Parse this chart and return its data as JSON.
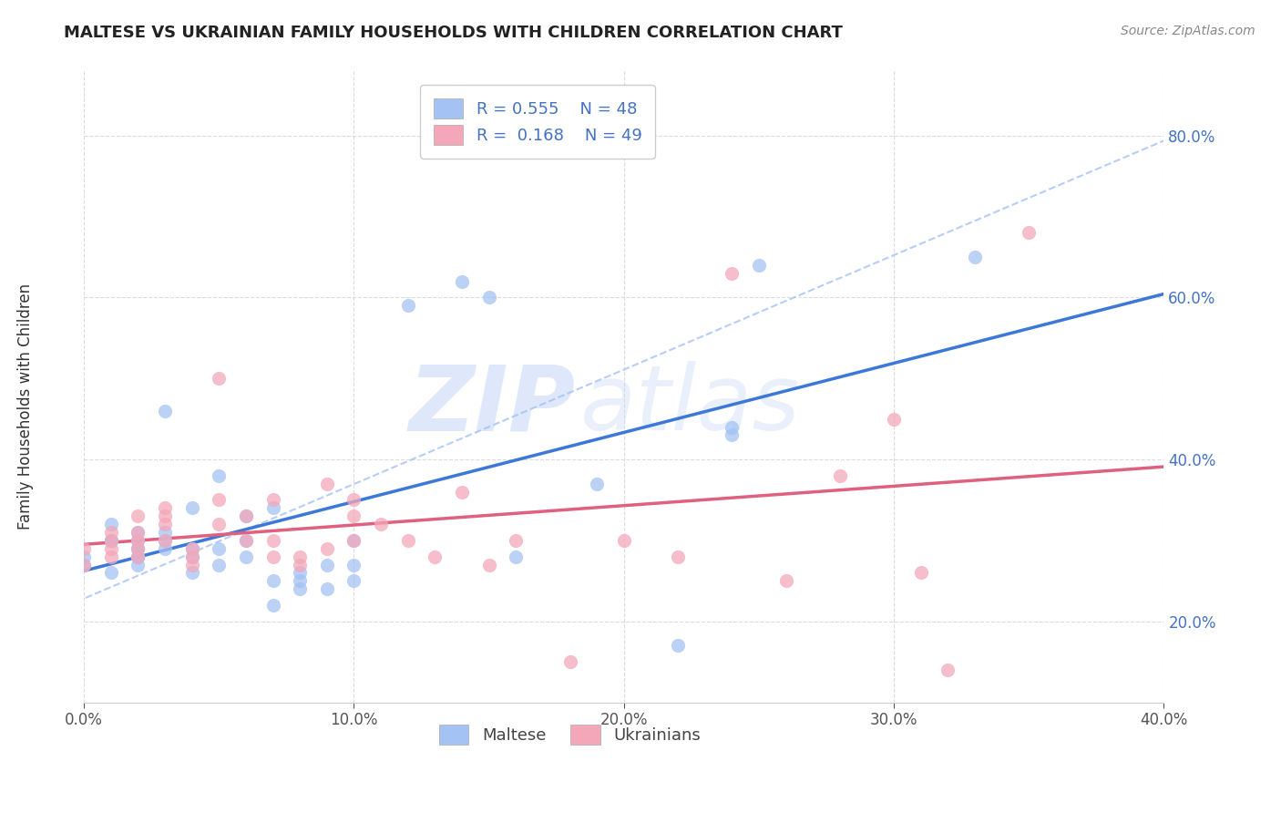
{
  "title": "MALTESE VS UKRAINIAN FAMILY HOUSEHOLDS WITH CHILDREN CORRELATION CHART",
  "source": "Source: ZipAtlas.com",
  "ylabel": "Family Households with Children",
  "xlim": [
    0.0,
    0.4
  ],
  "ylim": [
    0.1,
    0.88
  ],
  "maltese_color": "#a4c2f4",
  "ukrainian_color": "#f4a7b9",
  "maltese_R": 0.555,
  "maltese_N": 48,
  "ukrainian_R": 0.168,
  "ukrainian_N": 49,
  "maltese_line_color": "#3c78d8",
  "ukrainian_line_color": "#e06080",
  "dash_line_color": "#a4c2f4",
  "maltese_scatter": [
    [
      0.0,
      0.27
    ],
    [
      0.0,
      0.28
    ],
    [
      0.01,
      0.26
    ],
    [
      0.01,
      0.3
    ],
    [
      0.01,
      0.32
    ],
    [
      0.01,
      0.3
    ],
    [
      0.02,
      0.29
    ],
    [
      0.02,
      0.28
    ],
    [
      0.02,
      0.27
    ],
    [
      0.02,
      0.31
    ],
    [
      0.02,
      0.3
    ],
    [
      0.02,
      0.29
    ],
    [
      0.02,
      0.28
    ],
    [
      0.03,
      0.3
    ],
    [
      0.03,
      0.29
    ],
    [
      0.03,
      0.31
    ],
    [
      0.03,
      0.46
    ],
    [
      0.04,
      0.28
    ],
    [
      0.04,
      0.26
    ],
    [
      0.04,
      0.29
    ],
    [
      0.04,
      0.34
    ],
    [
      0.05,
      0.27
    ],
    [
      0.05,
      0.29
    ],
    [
      0.05,
      0.38
    ],
    [
      0.06,
      0.33
    ],
    [
      0.06,
      0.28
    ],
    [
      0.06,
      0.3
    ],
    [
      0.07,
      0.34
    ],
    [
      0.07,
      0.25
    ],
    [
      0.07,
      0.22
    ],
    [
      0.08,
      0.25
    ],
    [
      0.08,
      0.24
    ],
    [
      0.08,
      0.26
    ],
    [
      0.09,
      0.24
    ],
    [
      0.09,
      0.27
    ],
    [
      0.1,
      0.3
    ],
    [
      0.1,
      0.27
    ],
    [
      0.1,
      0.25
    ],
    [
      0.12,
      0.59
    ],
    [
      0.14,
      0.62
    ],
    [
      0.15,
      0.6
    ],
    [
      0.16,
      0.28
    ],
    [
      0.19,
      0.37
    ],
    [
      0.22,
      0.17
    ],
    [
      0.24,
      0.44
    ],
    [
      0.24,
      0.43
    ],
    [
      0.25,
      0.64
    ],
    [
      0.33,
      0.65
    ]
  ],
  "ukrainian_scatter": [
    [
      0.0,
      0.27
    ],
    [
      0.0,
      0.29
    ],
    [
      0.01,
      0.3
    ],
    [
      0.01,
      0.29
    ],
    [
      0.01,
      0.28
    ],
    [
      0.01,
      0.31
    ],
    [
      0.02,
      0.3
    ],
    [
      0.02,
      0.28
    ],
    [
      0.02,
      0.29
    ],
    [
      0.02,
      0.31
    ],
    [
      0.02,
      0.33
    ],
    [
      0.03,
      0.34
    ],
    [
      0.03,
      0.32
    ],
    [
      0.03,
      0.33
    ],
    [
      0.03,
      0.3
    ],
    [
      0.04,
      0.28
    ],
    [
      0.04,
      0.27
    ],
    [
      0.04,
      0.29
    ],
    [
      0.05,
      0.32
    ],
    [
      0.05,
      0.35
    ],
    [
      0.05,
      0.5
    ],
    [
      0.06,
      0.33
    ],
    [
      0.06,
      0.3
    ],
    [
      0.07,
      0.35
    ],
    [
      0.07,
      0.28
    ],
    [
      0.07,
      0.3
    ],
    [
      0.08,
      0.27
    ],
    [
      0.08,
      0.28
    ],
    [
      0.09,
      0.37
    ],
    [
      0.09,
      0.29
    ],
    [
      0.1,
      0.3
    ],
    [
      0.1,
      0.33
    ],
    [
      0.1,
      0.35
    ],
    [
      0.11,
      0.32
    ],
    [
      0.12,
      0.3
    ],
    [
      0.13,
      0.28
    ],
    [
      0.14,
      0.36
    ],
    [
      0.15,
      0.27
    ],
    [
      0.16,
      0.3
    ],
    [
      0.18,
      0.15
    ],
    [
      0.2,
      0.3
    ],
    [
      0.22,
      0.28
    ],
    [
      0.24,
      0.63
    ],
    [
      0.26,
      0.25
    ],
    [
      0.28,
      0.38
    ],
    [
      0.3,
      0.45
    ],
    [
      0.31,
      0.26
    ],
    [
      0.32,
      0.14
    ],
    [
      0.35,
      0.68
    ]
  ],
  "grid_color": "#cccccc",
  "legend_color": "#4472c4",
  "background_color": "#ffffff"
}
